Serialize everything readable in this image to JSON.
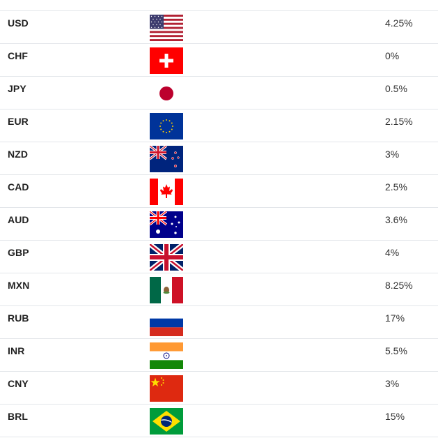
{
  "rates": [
    {
      "code": "USD",
      "rate": "4.25%",
      "flag": "us-flag-icon"
    },
    {
      "code": "CHF",
      "rate": "0%",
      "flag": "swiss-flag-icon"
    },
    {
      "code": "JPY",
      "rate": "0.5%",
      "flag": "japan-flag-icon"
    },
    {
      "code": "EUR",
      "rate": "2.15%",
      "flag": "eu-flag-icon"
    },
    {
      "code": "NZD",
      "rate": "3%",
      "flag": "new-zealand-flag-icon"
    },
    {
      "code": "CAD",
      "rate": "2.5%",
      "flag": "canada-flag-icon"
    },
    {
      "code": "AUD",
      "rate": "3.6%",
      "flag": "australia-flag-icon"
    },
    {
      "code": "GBP",
      "rate": "4%",
      "flag": "uk-flag-icon"
    },
    {
      "code": "MXN",
      "rate": "8.25%",
      "flag": "mexico-flag-icon"
    },
    {
      "code": "RUB",
      "rate": "17%",
      "flag": "russia-flag-icon"
    },
    {
      "code": "INR",
      "rate": "5.5%",
      "flag": "india-flag-icon"
    },
    {
      "code": "CNY",
      "rate": "3%",
      "flag": "china-flag-icon"
    },
    {
      "code": "BRL",
      "rate": "15%",
      "flag": "brazil-flag-icon"
    }
  ],
  "colors": {
    "row_border": "#e3e6ea",
    "code_text": "#222222",
    "rate_text": "#333333"
  }
}
